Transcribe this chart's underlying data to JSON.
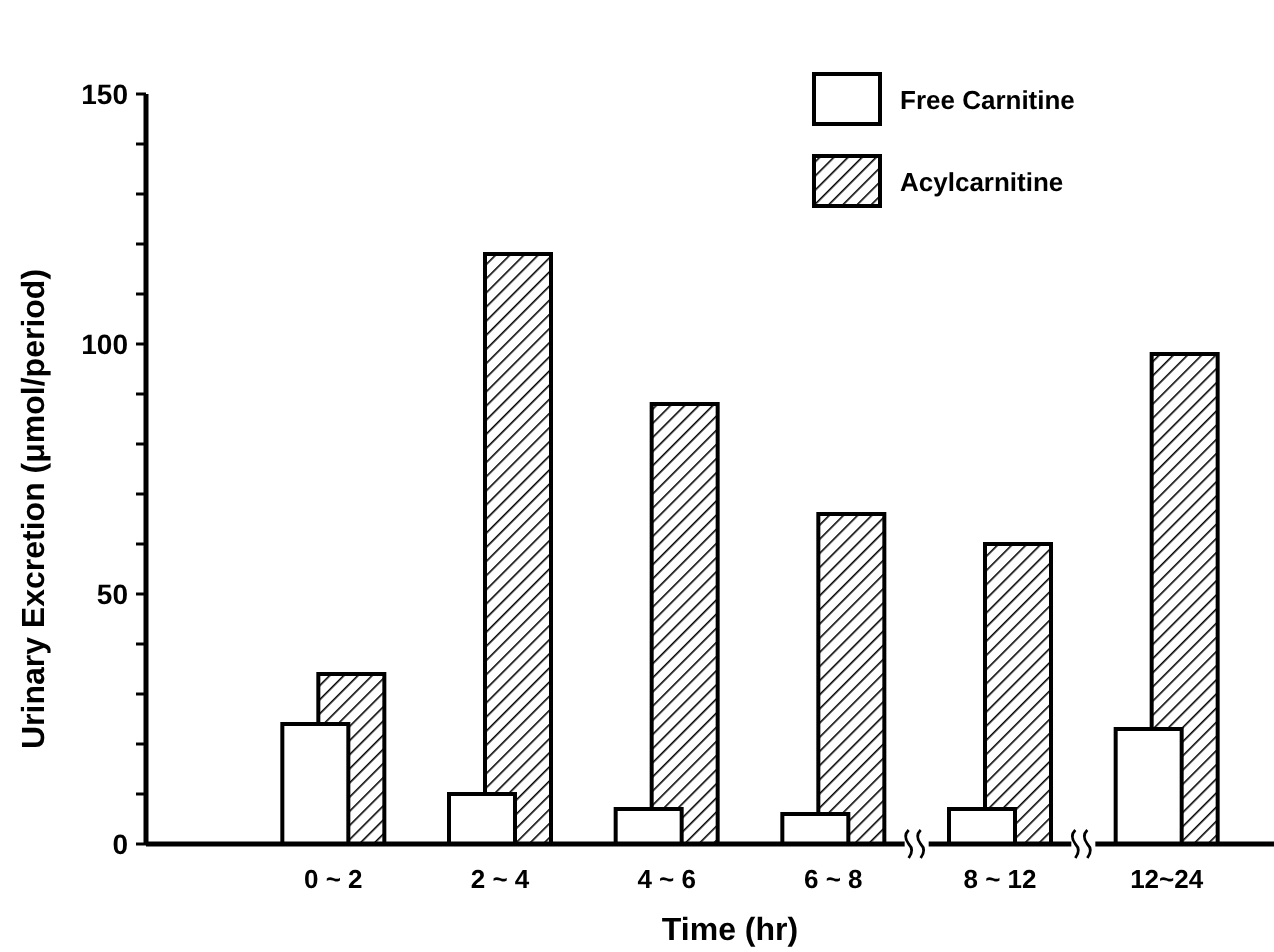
{
  "chart_data": {
    "type": "bar",
    "xlabel": "Time (hr)",
    "ylabel": "Urinary Excretion (μmol/period)",
    "categories": [
      "0 ~ 2",
      "2 ~ 4",
      "4 ~ 6",
      "6 ~ 8",
      "8 ~ 12",
      "12~24"
    ],
    "series": [
      {
        "name": "Free Carnitine",
        "color": "#ffffff",
        "values": [
          24,
          10,
          7,
          6,
          7,
          23
        ]
      },
      {
        "name": "Acylcarnitine",
        "color": "#000000",
        "values": [
          34,
          118,
          88,
          66,
          60,
          98
        ]
      }
    ],
    "ylim": [
      0,
      150
    ],
    "yticks": [
      0,
      {
        "value": 10,
        "label": null
      },
      {
        "value": 20,
        "label": null
      },
      {
        "value": 30,
        "label": null
      },
      {
        "value": 40,
        "label": null
      },
      50,
      {
        "value": 60,
        "label": null
      },
      {
        "value": 70,
        "label": null
      },
      {
        "value": 80,
        "label": null
      },
      {
        "value": 90,
        "label": null
      },
      100,
      {
        "value": 110,
        "label": null
      },
      {
        "value": 120,
        "label": null
      },
      {
        "value": 130,
        "label": null
      },
      {
        "value": 140,
        "label": null
      },
      150
    ],
    "grid": false,
    "legend": "top right"
  }
}
